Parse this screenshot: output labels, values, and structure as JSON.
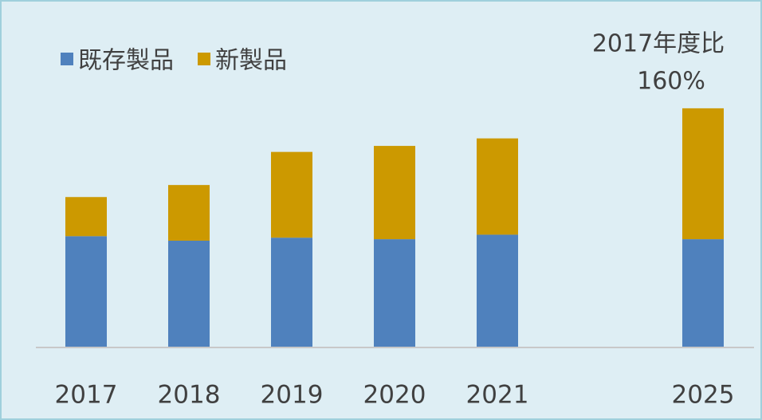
{
  "chart_data": {
    "type": "stacked_bar",
    "categories": [
      "2017",
      "2018",
      "2019",
      "2020",
      "2021",
      null,
      "2025"
    ],
    "series": [
      {
        "name": "既存製品",
        "color": "#4f81bd",
        "values": [
          74,
          71,
          73,
          72,
          75,
          null,
          72
        ]
      },
      {
        "name": "新製品",
        "color": "#cc9900",
        "values": [
          26,
          37,
          57,
          62,
          64,
          null,
          87
        ]
      }
    ],
    "ylim": [
      0,
      160
    ],
    "legend": "top-left",
    "annotation": [
      "2017年度比",
      "160%"
    ]
  }
}
